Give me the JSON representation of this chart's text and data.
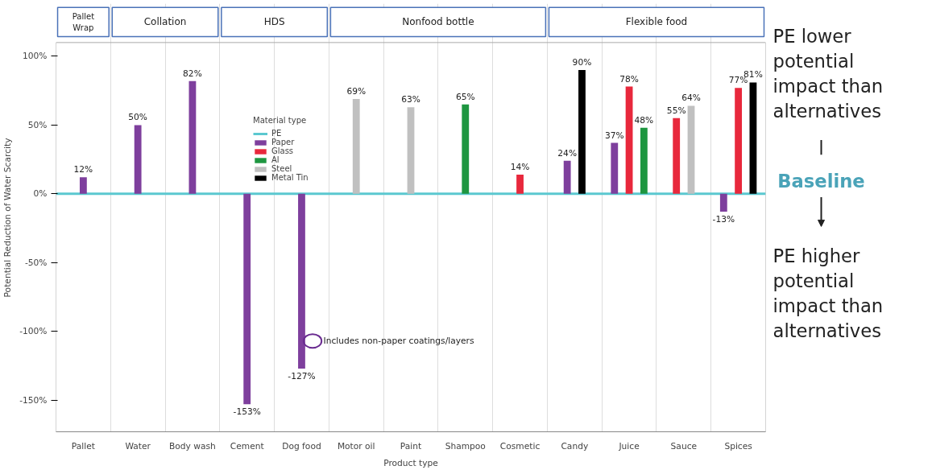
{
  "chart_data": {
    "type": "bar",
    "xlabel": "Product type",
    "ylabel": "Potential Reduction of Water Scarcity",
    "legend_title": "Material type",
    "categories": [
      "Pallet",
      "Water",
      "Body wash",
      "Cement",
      "Dog food",
      "Motor oil",
      "Paint",
      "Shampoo",
      "Cosmetic",
      "Candy",
      "Juice",
      "Sauce",
      "Spices"
    ],
    "series": [
      {
        "name": "Paper",
        "color": "#7e3f9d",
        "values": [
          12,
          50,
          82,
          -153,
          -127,
          null,
          null,
          null,
          null,
          24,
          37,
          null,
          -13
        ],
        "value_labels": [
          "12%",
          "50%",
          "82%",
          "-153%",
          "-127%",
          null,
          null,
          null,
          null,
          "24%",
          "37%",
          null,
          "-13%"
        ]
      },
      {
        "name": "Glass",
        "color": "#e8283c",
        "values": [
          null,
          null,
          null,
          null,
          null,
          null,
          null,
          null,
          14,
          null,
          78,
          55,
          77
        ],
        "value_labels": [
          null,
          null,
          null,
          null,
          null,
          null,
          null,
          null,
          "14%",
          null,
          "78%",
          "55%",
          "77%"
        ]
      },
      {
        "name": "Al",
        "color": "#1e9640",
        "values": [
          null,
          null,
          null,
          null,
          null,
          null,
          null,
          65,
          null,
          null,
          48,
          null,
          null
        ],
        "value_labels": [
          null,
          null,
          null,
          null,
          null,
          null,
          null,
          "65%",
          null,
          null,
          "48%",
          null,
          null
        ]
      },
      {
        "name": "Steel",
        "color": "#c0c0c0",
        "values": [
          null,
          null,
          null,
          null,
          null,
          69,
          63,
          null,
          null,
          null,
          null,
          64,
          null
        ],
        "value_labels": [
          null,
          null,
          null,
          null,
          null,
          "69%",
          "63%",
          null,
          null,
          null,
          null,
          "64%",
          null
        ]
      },
      {
        "name": "Metal Tin",
        "color": "#000000",
        "values": [
          null,
          null,
          null,
          null,
          null,
          null,
          null,
          null,
          null,
          90,
          null,
          null,
          81
        ],
        "value_labels": [
          null,
          null,
          null,
          null,
          null,
          null,
          null,
          null,
          null,
          "90%",
          null,
          null,
          "81%"
        ]
      }
    ],
    "ref_lines": [
      {
        "axis": "y",
        "value": 0,
        "label": "PE",
        "color": "#5bc8d0"
      }
    ],
    "ylim": [
      -173,
      110
    ],
    "yticks": [
      {
        "value": -150,
        "label": "-150%"
      },
      {
        "value": -100,
        "label": "-100%"
      },
      {
        "value": -50,
        "label": "-50%"
      },
      {
        "value": 0,
        "label": "0%"
      },
      {
        "value": 50,
        "label": "50%"
      },
      {
        "value": 100,
        "label": "100%"
      }
    ],
    "grid": "x",
    "legend": "top left",
    "annotations": [
      "Pallet Wrap",
      "Collation",
      "HDS",
      "Nonfood bottle",
      "Flexible food",
      "Includes non-paper coatings/layers",
      "PE lower potential impact than alternatives",
      "Baseline",
      "PE higher potential impact than alternatives"
    ]
  }
}
